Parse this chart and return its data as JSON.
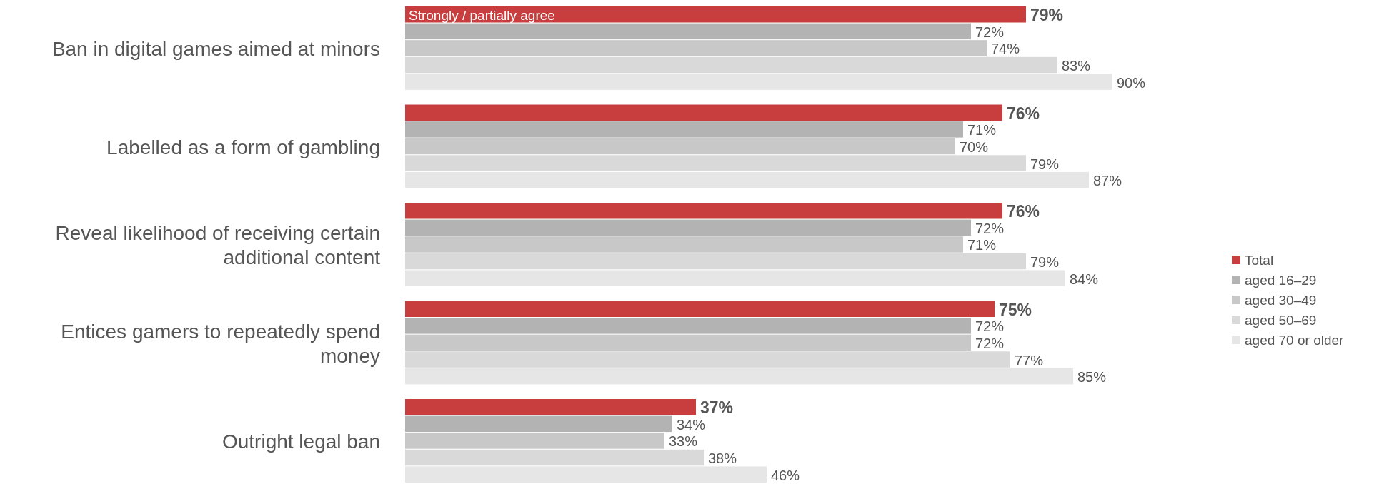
{
  "chart_data": {
    "type": "bar",
    "orientation": "horizontal",
    "categories": [
      "Ban in digital games aimed at minors",
      "Labelled as a form of gambling",
      "Reveal likelihood of receiving certain additional content",
      "Entices gamers to repeatedly spend money",
      "Outright legal ban"
    ],
    "series": [
      {
        "name": "Total",
        "color": "#c83e3e",
        "values": [
          79,
          76,
          76,
          75,
          37
        ],
        "value_labels": [
          "79%",
          "76%",
          "76%",
          "75%",
          "37%"
        ]
      },
      {
        "name": "aged 16–29",
        "color": "#b3b3b3",
        "values": [
          72,
          71,
          72,
          72,
          34
        ],
        "value_labels": [
          "72%",
          "71%",
          "72%",
          "72%",
          "34%"
        ]
      },
      {
        "name": "aged 30–49",
        "color": "#c8c8c8",
        "values": [
          74,
          70,
          71,
          72,
          33
        ],
        "value_labels": [
          "74%",
          "70%",
          "71%",
          "72%",
          "33%"
        ]
      },
      {
        "name": "aged 50–69",
        "color": "#d9d9d9",
        "values": [
          83,
          79,
          79,
          77,
          38
        ],
        "value_labels": [
          "83%",
          "79%",
          "79%",
          "77%",
          "38%"
        ]
      },
      {
        "name": "aged 70 or older",
        "color": "#e6e6e6",
        "values": [
          90,
          87,
          84,
          85,
          46
        ],
        "value_labels": [
          "90%",
          "87%",
          "84%",
          "85%",
          "46%"
        ]
      }
    ],
    "annotations": [
      "Strongly / partially agree"
    ],
    "legend": "right"
  }
}
